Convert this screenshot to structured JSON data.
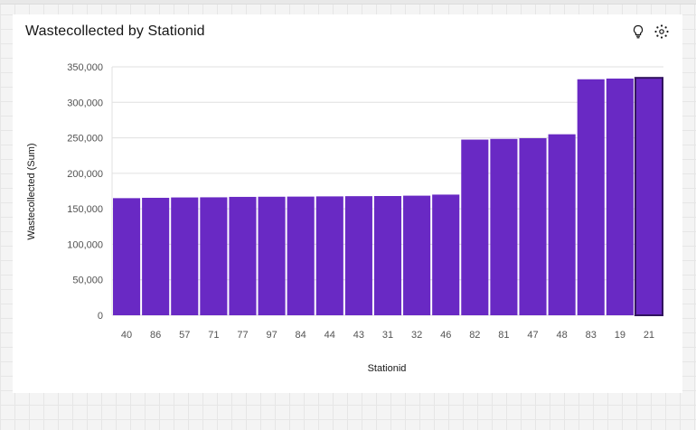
{
  "title": "Wastecollected by Stationid",
  "icons": [
    "lightbulb-icon",
    "settings-icon"
  ],
  "colors": {
    "bar": "#6929c4",
    "bar_highlight_border": "#31135e",
    "grid": "#e0e0e0"
  },
  "chart_data": {
    "type": "bar",
    "title": "Wastecollected by Stationid",
    "xlabel": "Stationid",
    "ylabel": "Wastecollected (Sum)",
    "ylim": [
      0,
      350000
    ],
    "yticks": [
      0,
      50000,
      100000,
      150000,
      200000,
      250000,
      300000,
      350000
    ],
    "ytick_labels": [
      "0",
      "50,000",
      "100,000",
      "150,000",
      "200,000",
      "250,000",
      "300,000",
      "350,000"
    ],
    "categories": [
      "40",
      "86",
      "57",
      "71",
      "77",
      "97",
      "84",
      "44",
      "43",
      "31",
      "32",
      "46",
      "82",
      "81",
      "47",
      "48",
      "83",
      "19",
      "21"
    ],
    "values": [
      165000,
      165500,
      166000,
      166200,
      166800,
      167000,
      167200,
      167500,
      167800,
      168000,
      168500,
      170000,
      247500,
      248500,
      249500,
      255000,
      332500,
      333500,
      334500
    ],
    "grid": true,
    "highlighted_category": "21"
  }
}
